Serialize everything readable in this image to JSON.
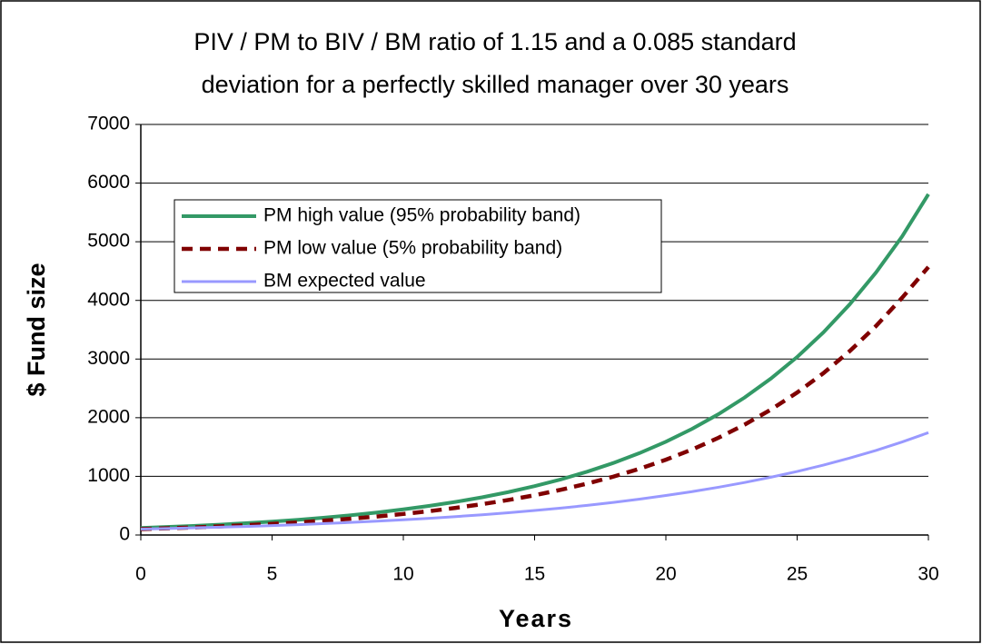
{
  "chart_data": {
    "type": "line",
    "title": [
      "PIV / PM to BIV / BM ratio of 1.15 and a 0.085 standard",
      "deviation for a perfectly skilled manager over 30 years"
    ],
    "x_label": "Years",
    "y_label": "$ Fund size",
    "x": [
      0,
      1,
      2,
      3,
      4,
      5,
      6,
      7,
      8,
      9,
      10,
      11,
      12,
      13,
      14,
      15,
      16,
      17,
      18,
      19,
      20,
      21,
      22,
      23,
      24,
      25,
      26,
      27,
      28,
      29,
      30
    ],
    "series": [
      {
        "name": "PM high value (95% probability band)",
        "color": "#339966",
        "line_style": "solid",
        "values": [
          120,
          137,
          155,
          177,
          201,
          229,
          260,
          296,
          337,
          384,
          437,
          497,
          565,
          643,
          732,
          833,
          948,
          1079,
          1228,
          1397,
          1590,
          1810,
          2059,
          2344,
          2667,
          3035,
          3454,
          3931,
          4473,
          5091,
          5810
        ]
      },
      {
        "name": "PM low value (5% probability band)",
        "color": "#800000",
        "line_style": "dashed",
        "values": [
          100,
          114,
          129,
          147,
          167,
          189,
          215,
          245,
          278,
          316,
          359,
          407,
          463,
          526,
          597,
          678,
          771,
          876,
          995,
          1130,
          1284,
          1458,
          1657,
          1882,
          2138,
          2429,
          2759,
          3134,
          3561,
          4045,
          4570
        ]
      },
      {
        "name": "BM expected value",
        "color": "#9999ff",
        "line_style": "solid",
        "values": [
          100,
          110,
          121,
          133,
          146,
          161,
          177,
          195,
          214,
          236,
          259,
          285,
          314,
          345,
          380,
          418,
          459,
          505,
          556,
          612,
          673,
          740,
          814,
          895,
          985,
          1083,
          1192,
          1311,
          1442,
          1586,
          1745
        ]
      }
    ],
    "xlim": [
      0,
      30
    ],
    "xticks": [
      0,
      5,
      10,
      15,
      20,
      25,
      30
    ],
    "ylim": [
      0,
      7000
    ],
    "yticks": [
      0,
      1000,
      2000,
      3000,
      4000,
      5000,
      6000,
      7000
    ],
    "grid": true,
    "legend": "upper left"
  }
}
